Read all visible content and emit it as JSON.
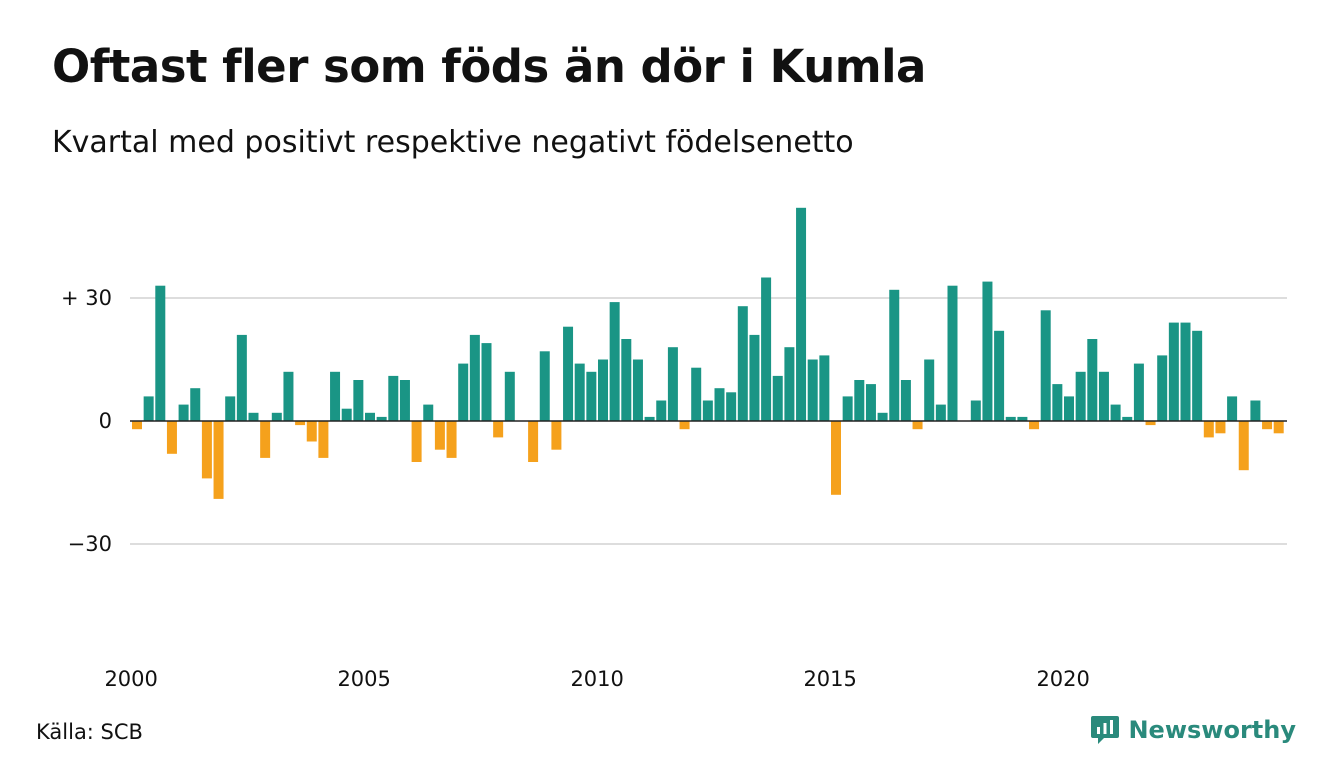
{
  "title": "Oftast fler som föds än dör i Kumla",
  "subtitle": "Kvartal med positivt respektive negativt födelsenetto",
  "source": "Källa: SCB",
  "brand": "Newsworthy",
  "colors": {
    "positive": "#1a9585",
    "negative": "#f5a11c",
    "grid": "#dddddd",
    "baseline": "#222222"
  },
  "chart_data": {
    "type": "bar",
    "x_start": "2000 Q1",
    "x_ticks": [
      "2000",
      "2005",
      "2010",
      "2015",
      "2020"
    ],
    "y_ticks": [
      {
        "value": 30,
        "label": "+ 30"
      },
      {
        "value": 0,
        "label": "0"
      },
      {
        "value": -30,
        "label": "−30"
      }
    ],
    "ylim": [
      -50,
      55
    ],
    "grid": true,
    "values": [
      -2,
      6,
      33,
      -8,
      4,
      8,
      -14,
      -19,
      6,
      21,
      2,
      -9,
      2,
      12,
      -1,
      -5,
      -9,
      12,
      3,
      10,
      2,
      1,
      11,
      10,
      -10,
      4,
      -7,
      -9,
      14,
      21,
      19,
      -4,
      12,
      0,
      -10,
      17,
      -7,
      23,
      14,
      12,
      15,
      29,
      20,
      15,
      1,
      5,
      18,
      -2,
      13,
      5,
      8,
      7,
      28,
      21,
      35,
      11,
      18,
      52,
      15,
      16,
      -18,
      6,
      10,
      9,
      2,
      32,
      10,
      -2,
      15,
      4,
      33,
      0,
      5,
      34,
      22,
      1,
      1,
      -2,
      27,
      9,
      6,
      12,
      20,
      12,
      4,
      1,
      14,
      -1,
      16,
      24,
      24,
      22,
      -4,
      -3,
      6,
      -12,
      5,
      -2,
      -3
    ]
  }
}
